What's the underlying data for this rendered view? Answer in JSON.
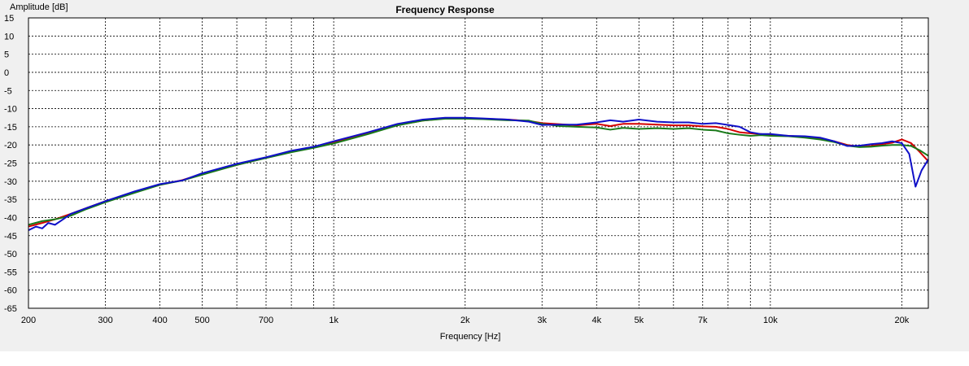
{
  "chart_data": {
    "type": "line",
    "title": "Frequency Response",
    "xlabel": "Frequency [Hz]",
    "ylabel": "Amplitude [dB]",
    "x_scale": "log",
    "xlim": [
      200,
      23000
    ],
    "ylim": [
      -65,
      15
    ],
    "grid": true,
    "y_ticks": [
      15,
      10,
      5,
      0,
      -5,
      -10,
      -15,
      -20,
      -25,
      -30,
      -35,
      -40,
      -45,
      -50,
      -55,
      -60,
      -65
    ],
    "x_ticks": [
      {
        "value": 200,
        "label": "200"
      },
      {
        "value": 300,
        "label": "300"
      },
      {
        "value": 400,
        "label": "400"
      },
      {
        "value": 500,
        "label": "500"
      },
      {
        "value": 700,
        "label": "700"
      },
      {
        "value": 1000,
        "label": "1k"
      },
      {
        "value": 2000,
        "label": "2k"
      },
      {
        "value": 3000,
        "label": "3k"
      },
      {
        "value": 4000,
        "label": "4k"
      },
      {
        "value": 5000,
        "label": "5k"
      },
      {
        "value": 7000,
        "label": "7k"
      },
      {
        "value": 10000,
        "label": "10k"
      },
      {
        "value": 20000,
        "label": "20k"
      }
    ],
    "minor_gridlines_x": [
      600,
      800,
      900,
      6000,
      8000,
      9000
    ],
    "series": [
      {
        "color": "#d40000",
        "x": [
          200,
          215,
          230,
          250,
          270,
          300,
          350,
          400,
          450,
          500,
          600,
          700,
          800,
          900,
          1000,
          1200,
          1400,
          1600,
          1800,
          2000,
          2200,
          2500,
          2800,
          3000,
          3300,
          3600,
          4000,
          4300,
          4600,
          5000,
          5500,
          6000,
          6500,
          7000,
          7500,
          8000,
          8500,
          9000,
          9500,
          10000,
          11000,
          12000,
          13000,
          14000,
          15000,
          16000,
          17000,
          18000,
          19000,
          20000,
          21000,
          22000,
          23000
        ],
        "y": [
          -42.5,
          -41.5,
          -40.5,
          -39,
          -37.5,
          -35.5,
          -33,
          -31,
          -29.7,
          -28,
          -25.5,
          -23.5,
          -21.8,
          -20.6,
          -19.3,
          -16.8,
          -14.5,
          -13.3,
          -12.7,
          -12.6,
          -12.8,
          -13.0,
          -13.4,
          -14.0,
          -14.3,
          -14.6,
          -14.2,
          -14.8,
          -14.2,
          -14.2,
          -14.4,
          -14.6,
          -14.6,
          -14.9,
          -15.0,
          -15.6,
          -16.5,
          -16.8,
          -17.0,
          -17.3,
          -17.5,
          -17.8,
          -18.2,
          -19.0,
          -20.0,
          -20.5,
          -20.3,
          -19.8,
          -19.4,
          -18.5,
          -19.5,
          -22.0,
          -24.5
        ]
      },
      {
        "color": "#1a7a1a",
        "x": [
          200,
          215,
          230,
          250,
          270,
          300,
          350,
          400,
          450,
          500,
          600,
          700,
          800,
          900,
          1000,
          1200,
          1400,
          1600,
          1800,
          2000,
          2200,
          2500,
          2800,
          3000,
          3300,
          3600,
          4000,
          4300,
          4600,
          5000,
          5500,
          6000,
          6500,
          7000,
          7500,
          8000,
          8500,
          9000,
          9500,
          10000,
          11000,
          12000,
          13000,
          14000,
          15000,
          16000,
          17000,
          18000,
          19000,
          20000,
          21000,
          22000,
          23000
        ],
        "y": [
          -42.0,
          -41.0,
          -40.5,
          -39.5,
          -37.8,
          -35.8,
          -33.2,
          -31.0,
          -29.8,
          -28.2,
          -25.5,
          -23.6,
          -22.0,
          -20.8,
          -19.6,
          -17.0,
          -14.6,
          -13.3,
          -12.8,
          -12.8,
          -12.9,
          -13.2,
          -13.3,
          -14.2,
          -14.8,
          -15.0,
          -15.2,
          -15.8,
          -15.3,
          -15.6,
          -15.4,
          -15.6,
          -15.4,
          -15.8,
          -16.0,
          -16.8,
          -17.2,
          -17.5,
          -17.3,
          -17.5,
          -17.6,
          -18.0,
          -18.5,
          -19.2,
          -20.2,
          -20.6,
          -20.5,
          -20.2,
          -20.0,
          -20.0,
          -20.3,
          -21.5,
          -23.0
        ]
      },
      {
        "color": "#1010c8",
        "x": [
          200,
          208,
          215,
          222,
          230,
          240,
          250,
          270,
          300,
          350,
          400,
          450,
          500,
          600,
          700,
          800,
          900,
          1000,
          1200,
          1400,
          1600,
          1800,
          2000,
          2200,
          2500,
          2800,
          3000,
          3300,
          3600,
          4000,
          4300,
          4600,
          5000,
          5500,
          6000,
          6500,
          7000,
          7500,
          8000,
          8500,
          9000,
          9500,
          10000,
          11000,
          12000,
          13000,
          14000,
          15000,
          16000,
          17000,
          18000,
          19000,
          20000,
          20800,
          21500,
          22200,
          23000
        ],
        "y": [
          -43.5,
          -42.5,
          -43.0,
          -41.5,
          -42.0,
          -40.5,
          -39.0,
          -37.5,
          -35.5,
          -32.8,
          -30.8,
          -29.8,
          -27.8,
          -25.2,
          -23.4,
          -21.6,
          -20.5,
          -19.0,
          -16.5,
          -14.2,
          -13.0,
          -12.5,
          -12.5,
          -12.7,
          -13.0,
          -13.6,
          -14.5,
          -14.4,
          -14.4,
          -13.8,
          -13.2,
          -13.6,
          -13.0,
          -13.6,
          -13.8,
          -13.8,
          -14.2,
          -14.0,
          -14.5,
          -15.0,
          -16.5,
          -17.0,
          -17.0,
          -17.5,
          -17.6,
          -18.0,
          -19.0,
          -20.3,
          -20.2,
          -19.8,
          -19.5,
          -19.0,
          -19.5,
          -22.5,
          -31.5,
          -27.0,
          -24.0
        ]
      }
    ]
  }
}
